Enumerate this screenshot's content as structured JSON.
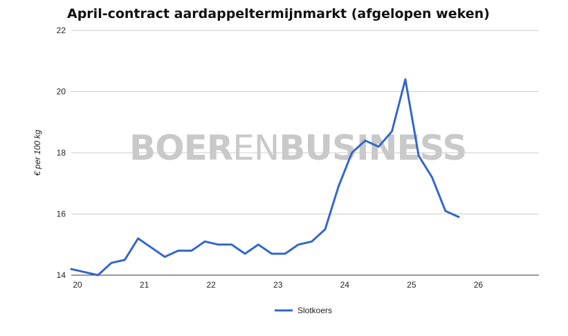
{
  "watermark": {
    "part1": "BOER",
    "part2": "EN",
    "part3": "BUSINESS"
  },
  "chart_data": {
    "type": "line",
    "title": "April-contract aardappeltermijnmarkt (afgelopen weken)",
    "xlabel": "",
    "ylabel": "€ per 100 kg",
    "xlim": [
      20,
      27
    ],
    "ylim": [
      14,
      22
    ],
    "x_ticks": [
      20,
      21,
      22,
      23,
      24,
      25,
      26
    ],
    "y_ticks": [
      14,
      16,
      18,
      20,
      22
    ],
    "grid": true,
    "legend": "bottom",
    "series": [
      {
        "name": "Slotkoers",
        "color": "#3366cc",
        "points": [
          [
            20.0,
            14.2
          ],
          [
            20.2,
            14.1
          ],
          [
            20.4,
            14.0
          ],
          [
            20.6,
            14.4
          ],
          [
            20.8,
            14.5
          ],
          [
            21.0,
            15.2
          ],
          [
            21.2,
            14.9
          ],
          [
            21.4,
            14.6
          ],
          [
            21.6,
            14.8
          ],
          [
            21.8,
            14.8
          ],
          [
            22.0,
            15.1
          ],
          [
            22.2,
            15.0
          ],
          [
            22.4,
            15.0
          ],
          [
            22.6,
            14.7
          ],
          [
            22.8,
            15.0
          ],
          [
            23.0,
            14.7
          ],
          [
            23.2,
            14.7
          ],
          [
            23.4,
            15.0
          ],
          [
            23.6,
            15.1
          ],
          [
            23.8,
            15.5
          ],
          [
            24.0,
            16.9
          ],
          [
            24.2,
            18.0
          ],
          [
            24.4,
            18.4
          ],
          [
            24.6,
            18.2
          ],
          [
            24.8,
            18.7
          ],
          [
            25.0,
            20.4
          ],
          [
            25.2,
            17.9
          ],
          [
            25.4,
            17.2
          ],
          [
            25.6,
            16.1
          ],
          [
            25.8,
            15.9
          ]
        ]
      }
    ]
  }
}
